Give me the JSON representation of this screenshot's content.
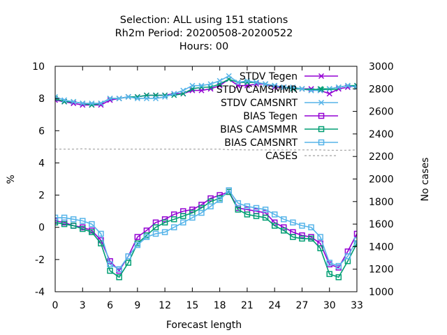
{
  "chart_data": {
    "type": "line",
    "title_lines": [
      "Selection: ALL using   151 stations",
      "Rh2m   Period: 20200508-20200522",
      "Hours:  00"
    ],
    "xlabel": "Forecast length",
    "ylabel": "%",
    "y2label": "No cases",
    "xlim": [
      0,
      33
    ],
    "ylim": [
      -4,
      10
    ],
    "y2lim": [
      1000,
      3000
    ],
    "xticks": [
      "0",
      "3",
      "6",
      "9",
      "12",
      "15",
      "18",
      "21",
      "24",
      "27",
      "30",
      "33"
    ],
    "yticks": [
      "-4",
      "-2",
      "0",
      "2",
      "4",
      "6",
      "8",
      "10"
    ],
    "y2ticks": [
      "1000",
      "1200",
      "1400",
      "1600",
      "1800",
      "2000",
      "2200",
      "2400",
      "2600",
      "2800",
      "3000"
    ],
    "grid": false,
    "legend_position": "top-right",
    "x": [
      0,
      1,
      2,
      3,
      4,
      5,
      6,
      7,
      8,
      9,
      10,
      11,
      12,
      13,
      14,
      15,
      16,
      17,
      18,
      19,
      20,
      21,
      22,
      23,
      24,
      25,
      26,
      27,
      28,
      29,
      30,
      31,
      32,
      33
    ],
    "series": [
      {
        "name": "STDV Tegen",
        "color": "#9400d3",
        "marker": "x",
        "axis": "y1",
        "dash": "solid",
        "values": [
          7.9,
          7.8,
          7.7,
          7.6,
          7.6,
          7.6,
          7.9,
          8.0,
          8.1,
          8.1,
          8.2,
          8.2,
          8.2,
          8.3,
          8.3,
          8.5,
          8.5,
          8.6,
          8.8,
          9.2,
          8.8,
          8.8,
          8.9,
          8.9,
          8.7,
          8.7,
          8.6,
          8.6,
          8.6,
          8.5,
          8.3,
          8.6,
          8.7,
          8.8
        ]
      },
      {
        "name": "STDV CAMSMMR",
        "color": "#009e73",
        "marker": "x",
        "axis": "y1",
        "dash": "solid",
        "values": [
          8.0,
          7.8,
          7.8,
          7.7,
          7.6,
          7.7,
          8.0,
          8.0,
          8.1,
          8.1,
          8.2,
          8.2,
          8.2,
          8.2,
          8.3,
          8.6,
          8.7,
          8.7,
          8.9,
          9.2,
          9.0,
          9.0,
          9.0,
          8.9,
          8.8,
          8.7,
          8.6,
          8.6,
          8.5,
          8.6,
          8.6,
          8.7,
          8.8,
          8.8
        ]
      },
      {
        "name": "STDV CAMSNRT",
        "color": "#56b4e9",
        "marker": "x",
        "axis": "y1",
        "dash": "solid",
        "values": [
          8.1,
          7.9,
          7.8,
          7.7,
          7.7,
          7.7,
          8.0,
          8.0,
          8.1,
          8.0,
          8.0,
          8.0,
          8.1,
          8.3,
          8.5,
          8.8,
          8.8,
          8.9,
          9.1,
          9.4,
          9.0,
          9.1,
          9.0,
          8.9,
          8.8,
          8.7,
          8.7,
          8.6,
          8.5,
          8.5,
          8.6,
          8.7,
          8.8,
          8.7
        ]
      },
      {
        "name": "BIAS Tegen",
        "color": "#9400d3",
        "marker": "square",
        "axis": "y1",
        "dash": "solid",
        "values": [
          0.4,
          0.3,
          0.1,
          0.0,
          -0.2,
          -0.8,
          -2.1,
          -2.7,
          -1.8,
          -0.6,
          -0.2,
          0.3,
          0.5,
          0.8,
          1.0,
          1.1,
          1.4,
          1.8,
          2.0,
          2.2,
          1.2,
          1.1,
          1.0,
          0.9,
          0.3,
          0.0,
          -0.3,
          -0.5,
          -0.6,
          -1.0,
          -2.3,
          -2.5,
          -1.5,
          -0.4
        ]
      },
      {
        "name": "BIAS CAMSMMR",
        "color": "#009e73",
        "marker": "square",
        "axis": "y1",
        "dash": "solid",
        "values": [
          0.3,
          0.2,
          0.1,
          -0.1,
          -0.3,
          -1.0,
          -2.7,
          -3.1,
          -2.2,
          -1.0,
          -0.5,
          0.0,
          0.3,
          0.5,
          0.7,
          0.9,
          1.2,
          1.6,
          1.8,
          2.2,
          1.1,
          0.8,
          0.7,
          0.6,
          0.1,
          -0.2,
          -0.6,
          -0.7,
          -0.7,
          -1.3,
          -2.9,
          -3.1,
          -2.1,
          -1.0
        ]
      },
      {
        "name": "BIAS CAMSNRT",
        "color": "#56b4e9",
        "marker": "square",
        "axis": "y1",
        "dash": "solid",
        "values": [
          0.6,
          0.6,
          0.5,
          0.4,
          0.2,
          -0.4,
          -2.3,
          -2.6,
          -1.8,
          -1.1,
          -0.6,
          -0.4,
          -0.3,
          0.0,
          0.3,
          0.6,
          0.9,
          1.3,
          1.7,
          2.3,
          1.5,
          1.3,
          1.2,
          1.1,
          0.8,
          0.5,
          0.3,
          0.1,
          0.0,
          -0.6,
          -2.2,
          -2.4,
          -1.8,
          -0.8
        ]
      },
      {
        "name": "CASES",
        "color": "#a0a0a0",
        "marker": "none",
        "axis": "y2",
        "dash": "dashed",
        "values": [
          2265,
          2265,
          2265,
          2268,
          2265,
          2265,
          2265,
          2265,
          2265,
          2265,
          2265,
          2265,
          2265,
          2265,
          2265,
          2265,
          2265,
          2265,
          2265,
          2260,
          2260,
          2258,
          2258,
          2258,
          2258,
          2258,
          2258,
          2258,
          2258,
          2258,
          2255,
          2255,
          2255,
          2258
        ]
      }
    ]
  }
}
